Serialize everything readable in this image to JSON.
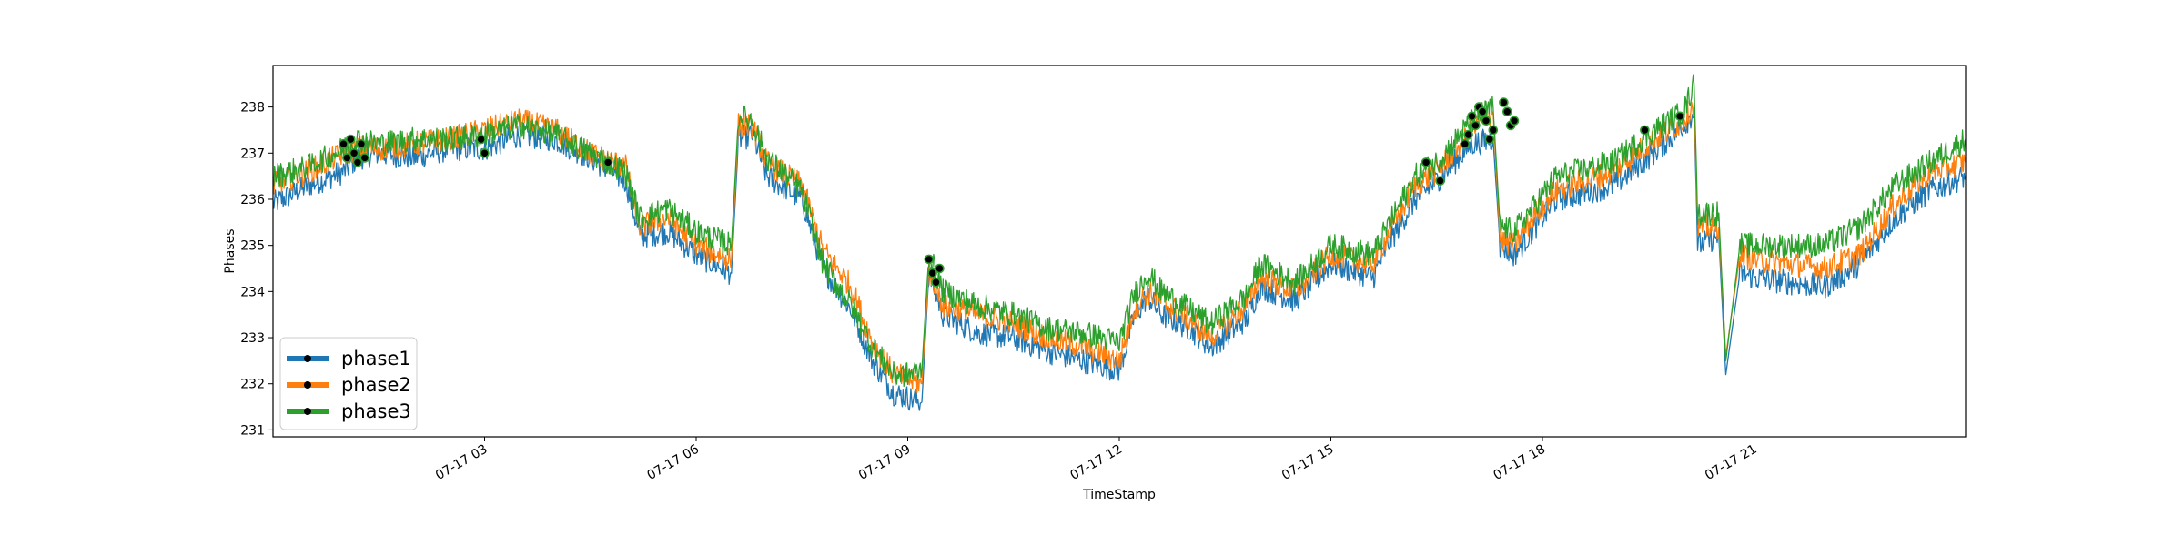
{
  "chart_data": {
    "type": "line",
    "title": "",
    "xlabel": "TimeStamp",
    "ylabel": "Phases",
    "x_range_hours": [
      0,
      24
    ],
    "ylim": [
      230.85,
      238.9
    ],
    "y_ticks": [
      231,
      232,
      233,
      234,
      235,
      236,
      237,
      238
    ],
    "x_ticks": [
      {
        "hour": 3,
        "label": "07-17 03"
      },
      {
        "hour": 6,
        "label": "07-17 06"
      },
      {
        "hour": 9,
        "label": "07-17 09"
      },
      {
        "hour": 12,
        "label": "07-17 12"
      },
      {
        "hour": 15,
        "label": "07-17 15"
      },
      {
        "hour": 18,
        "label": "07-17 18"
      },
      {
        "hour": 21,
        "label": "07-17 21"
      }
    ],
    "grid": false,
    "legend": "lower-left",
    "series": [
      {
        "name": "phase1",
        "color": "#1f77b4",
        "points": [
          [
            0,
            235.9
          ],
          [
            0.5,
            236.3
          ],
          [
            1.0,
            236.6
          ],
          [
            1.2,
            236.9
          ],
          [
            1.5,
            237.0
          ],
          [
            2.0,
            236.9
          ],
          [
            2.5,
            237.1
          ],
          [
            3.0,
            237.1
          ],
          [
            3.5,
            237.4
          ],
          [
            4.0,
            237.3
          ],
          [
            4.5,
            236.9
          ],
          [
            5.0,
            236.4
          ],
          [
            5.2,
            235.2
          ],
          [
            5.6,
            235.3
          ],
          [
            6.0,
            234.8
          ],
          [
            6.5,
            234.4
          ],
          [
            6.6,
            237.3
          ],
          [
            6.8,
            237.4
          ],
          [
            7.0,
            236.5
          ],
          [
            7.5,
            236.0
          ],
          [
            7.8,
            234.5
          ],
          [
            8.2,
            233.6
          ],
          [
            8.5,
            232.5
          ],
          [
            8.8,
            231.8
          ],
          [
            9.0,
            231.7
          ],
          [
            9.2,
            231.6
          ],
          [
            9.3,
            234.4
          ],
          [
            9.5,
            233.5
          ],
          [
            10.0,
            233.1
          ],
          [
            10.5,
            233.0
          ],
          [
            11.0,
            232.7
          ],
          [
            11.5,
            232.5
          ],
          [
            12.0,
            232.3
          ],
          [
            12.2,
            233.4
          ],
          [
            12.4,
            233.9
          ],
          [
            12.6,
            233.5
          ],
          [
            13.0,
            233.2
          ],
          [
            13.3,
            232.8
          ],
          [
            13.8,
            233.4
          ],
          [
            14.0,
            234.1
          ],
          [
            14.5,
            233.8
          ],
          [
            15.0,
            234.6
          ],
          [
            15.6,
            234.3
          ],
          [
            15.8,
            235.0
          ],
          [
            16.2,
            236.0
          ],
          [
            16.5,
            236.4
          ],
          [
            17.0,
            237.2
          ],
          [
            17.3,
            237.3
          ],
          [
            17.4,
            235.0
          ],
          [
            17.6,
            234.8
          ],
          [
            18.0,
            235.6
          ],
          [
            18.2,
            236.0
          ],
          [
            19.0,
            236.3
          ],
          [
            19.5,
            236.9
          ],
          [
            20.0,
            237.6
          ],
          [
            20.15,
            237.9
          ],
          [
            20.2,
            235.0
          ],
          [
            20.5,
            235.2
          ],
          [
            20.6,
            232.2
          ],
          [
            20.8,
            234.4
          ],
          [
            21.0,
            234.3
          ],
          [
            22.0,
            234.1
          ],
          [
            22.5,
            234.6
          ],
          [
            23.0,
            235.6
          ],
          [
            23.5,
            236.2
          ],
          [
            24.0,
            236.5
          ]
        ]
      },
      {
        "name": "phase2",
        "color": "#ff7f0e",
        "points": [
          [
            0,
            236.3
          ],
          [
            0.5,
            236.6
          ],
          [
            1.0,
            237.0
          ],
          [
            1.2,
            237.1
          ],
          [
            1.5,
            237.1
          ],
          [
            2.0,
            237.2
          ],
          [
            2.5,
            237.3
          ],
          [
            3.0,
            237.5
          ],
          [
            3.5,
            237.7
          ],
          [
            4.0,
            237.5
          ],
          [
            4.5,
            237.0
          ],
          [
            5.0,
            236.7
          ],
          [
            5.2,
            235.4
          ],
          [
            5.6,
            235.6
          ],
          [
            6.0,
            235.0
          ],
          [
            6.5,
            234.7
          ],
          [
            6.6,
            237.6
          ],
          [
            6.8,
            237.6
          ],
          [
            7.0,
            236.8
          ],
          [
            7.5,
            236.3
          ],
          [
            7.8,
            234.9
          ],
          [
            8.2,
            234.1
          ],
          [
            8.5,
            232.9
          ],
          [
            8.8,
            232.2
          ],
          [
            9.0,
            232.1
          ],
          [
            9.2,
            232.0
          ],
          [
            9.3,
            234.5
          ],
          [
            9.5,
            233.7
          ],
          [
            10.0,
            233.5
          ],
          [
            10.5,
            233.3
          ],
          [
            11.0,
            233.0
          ],
          [
            11.5,
            232.8
          ],
          [
            12.0,
            232.5
          ],
          [
            12.2,
            233.6
          ],
          [
            12.4,
            234.0
          ],
          [
            12.6,
            233.8
          ],
          [
            13.0,
            233.4
          ],
          [
            13.3,
            233.0
          ],
          [
            13.8,
            233.7
          ],
          [
            14.0,
            234.3
          ],
          [
            14.5,
            234.0
          ],
          [
            15.0,
            234.8
          ],
          [
            15.6,
            234.6
          ],
          [
            15.8,
            235.2
          ],
          [
            16.2,
            236.3
          ],
          [
            16.5,
            236.6
          ],
          [
            17.0,
            237.5
          ],
          [
            17.3,
            237.9
          ],
          [
            17.4,
            235.1
          ],
          [
            17.6,
            235.0
          ],
          [
            18.0,
            235.9
          ],
          [
            18.2,
            236.2
          ],
          [
            19.0,
            236.6
          ],
          [
            19.5,
            237.2
          ],
          [
            20.0,
            237.7
          ],
          [
            20.15,
            238.1
          ],
          [
            20.2,
            235.4
          ],
          [
            20.5,
            235.4
          ],
          [
            20.6,
            232.6
          ],
          [
            20.8,
            234.8
          ],
          [
            21.0,
            234.7
          ],
          [
            22.0,
            234.5
          ],
          [
            22.5,
            234.8
          ],
          [
            23.0,
            235.9
          ],
          [
            23.5,
            236.6
          ],
          [
            24.0,
            236.8
          ]
        ]
      },
      {
        "name": "phase3",
        "color": "#2ca02c",
        "points": [
          [
            0,
            236.5
          ],
          [
            0.5,
            236.7
          ],
          [
            1.0,
            237.1
          ],
          [
            1.2,
            237.3
          ],
          [
            1.5,
            237.2
          ],
          [
            2.0,
            237.3
          ],
          [
            2.5,
            237.3
          ],
          [
            3.0,
            237.4
          ],
          [
            3.5,
            237.6
          ],
          [
            4.0,
            237.4
          ],
          [
            4.5,
            237.0
          ],
          [
            5.0,
            236.6
          ],
          [
            5.2,
            235.6
          ],
          [
            5.6,
            235.8
          ],
          [
            6.0,
            235.3
          ],
          [
            6.5,
            235.0
          ],
          [
            6.6,
            237.8
          ],
          [
            6.8,
            237.7
          ],
          [
            7.0,
            236.9
          ],
          [
            7.5,
            236.2
          ],
          [
            7.8,
            234.6
          ],
          [
            8.2,
            233.7
          ],
          [
            8.5,
            232.8
          ],
          [
            8.8,
            232.2
          ],
          [
            9.0,
            232.2
          ],
          [
            9.2,
            232.3
          ],
          [
            9.3,
            234.8
          ],
          [
            9.5,
            234.0
          ],
          [
            10.0,
            233.7
          ],
          [
            10.5,
            233.5
          ],
          [
            11.0,
            233.2
          ],
          [
            11.5,
            233.1
          ],
          [
            12.0,
            232.9
          ],
          [
            12.2,
            233.9
          ],
          [
            12.4,
            234.4
          ],
          [
            12.6,
            234.0
          ],
          [
            13.0,
            233.6
          ],
          [
            13.3,
            233.3
          ],
          [
            13.8,
            233.9
          ],
          [
            14.0,
            234.6
          ],
          [
            14.5,
            234.2
          ],
          [
            15.0,
            235.0
          ],
          [
            15.6,
            234.8
          ],
          [
            15.8,
            235.4
          ],
          [
            16.2,
            236.5
          ],
          [
            16.5,
            236.8
          ],
          [
            17.0,
            237.7
          ],
          [
            17.3,
            238.0
          ],
          [
            17.4,
            235.4
          ],
          [
            17.6,
            235.3
          ],
          [
            18.0,
            236.1
          ],
          [
            18.2,
            236.5
          ],
          [
            19.0,
            236.8
          ],
          [
            19.5,
            237.4
          ],
          [
            20.0,
            237.9
          ],
          [
            20.15,
            238.5
          ],
          [
            20.2,
            235.7
          ],
          [
            20.5,
            235.7
          ],
          [
            20.6,
            232.5
          ],
          [
            20.8,
            235.0
          ],
          [
            21.0,
            235.0
          ],
          [
            22.0,
            235.0
          ],
          [
            22.5,
            235.4
          ],
          [
            23.0,
            236.3
          ],
          [
            23.5,
            236.8
          ],
          [
            24.0,
            237.3
          ]
        ]
      }
    ],
    "markers": [
      [
        1.0,
        237.2
      ],
      [
        1.05,
        236.9
      ],
      [
        1.1,
        237.3
      ],
      [
        1.15,
        237.0
      ],
      [
        1.2,
        236.8
      ],
      [
        1.25,
        237.2
      ],
      [
        1.3,
        236.9
      ],
      [
        2.95,
        237.3
      ],
      [
        3.0,
        237.0
      ],
      [
        4.75,
        236.8
      ],
      [
        9.3,
        234.7
      ],
      [
        9.35,
        234.4
      ],
      [
        9.4,
        234.2
      ],
      [
        9.45,
        234.5
      ],
      [
        16.35,
        236.8
      ],
      [
        16.55,
        236.4
      ],
      [
        16.9,
        237.2
      ],
      [
        16.95,
        237.4
      ],
      [
        17.0,
        237.8
      ],
      [
        17.05,
        237.6
      ],
      [
        17.1,
        238.0
      ],
      [
        17.15,
        237.9
      ],
      [
        17.2,
        237.7
      ],
      [
        17.25,
        237.3
      ],
      [
        17.3,
        237.5
      ],
      [
        17.45,
        238.1
      ],
      [
        17.5,
        237.9
      ],
      [
        17.55,
        237.6
      ],
      [
        17.6,
        237.7
      ],
      [
        19.45,
        237.5
      ],
      [
        19.95,
        237.8
      ]
    ]
  },
  "legend": {
    "items": [
      {
        "label": "phase1",
        "color": "#1f77b4"
      },
      {
        "label": "phase2",
        "color": "#ff7f0e"
      },
      {
        "label": "phase3",
        "color": "#2ca02c"
      }
    ]
  }
}
